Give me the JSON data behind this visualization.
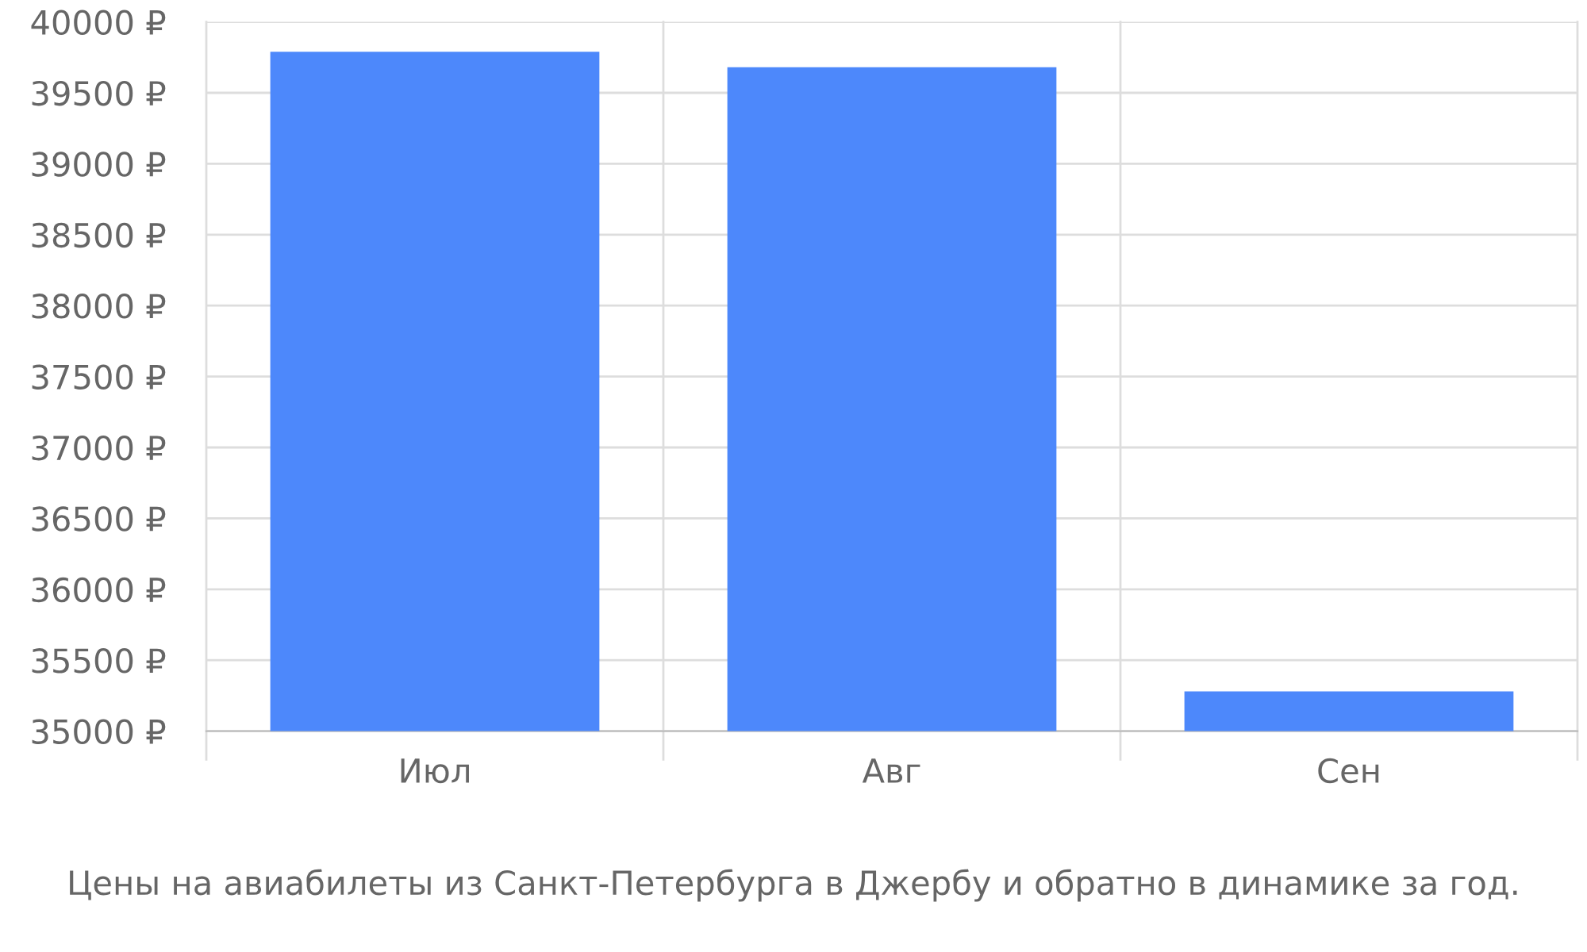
{
  "chart_data": {
    "type": "bar",
    "categories": [
      "Июл",
      "Авг",
      "Сен"
    ],
    "values": [
      39790,
      39680,
      35280
    ],
    "color": "#4d88fb",
    "ylim": [
      35000,
      40000
    ],
    "yticks": [
      {
        "value": 35000,
        "label": "35000 ₽"
      },
      {
        "value": 35500,
        "label": "35500 ₽"
      },
      {
        "value": 36000,
        "label": "36000 ₽"
      },
      {
        "value": 36500,
        "label": "36500 ₽"
      },
      {
        "value": 37000,
        "label": "37000 ₽"
      },
      {
        "value": 37500,
        "label": "37500 ₽"
      },
      {
        "value": 38000,
        "label": "38000 ₽"
      },
      {
        "value": 38500,
        "label": "38500 ₽"
      },
      {
        "value": 39000,
        "label": "39000 ₽"
      },
      {
        "value": 39500,
        "label": "39500 ₽"
      },
      {
        "value": 40000,
        "label": "40000 ₽"
      }
    ],
    "grid": true,
    "annotations": [
      "Цены на авиабилеты из Санкт-Петербурга в Джербу и обратно в динамике за год."
    ]
  }
}
